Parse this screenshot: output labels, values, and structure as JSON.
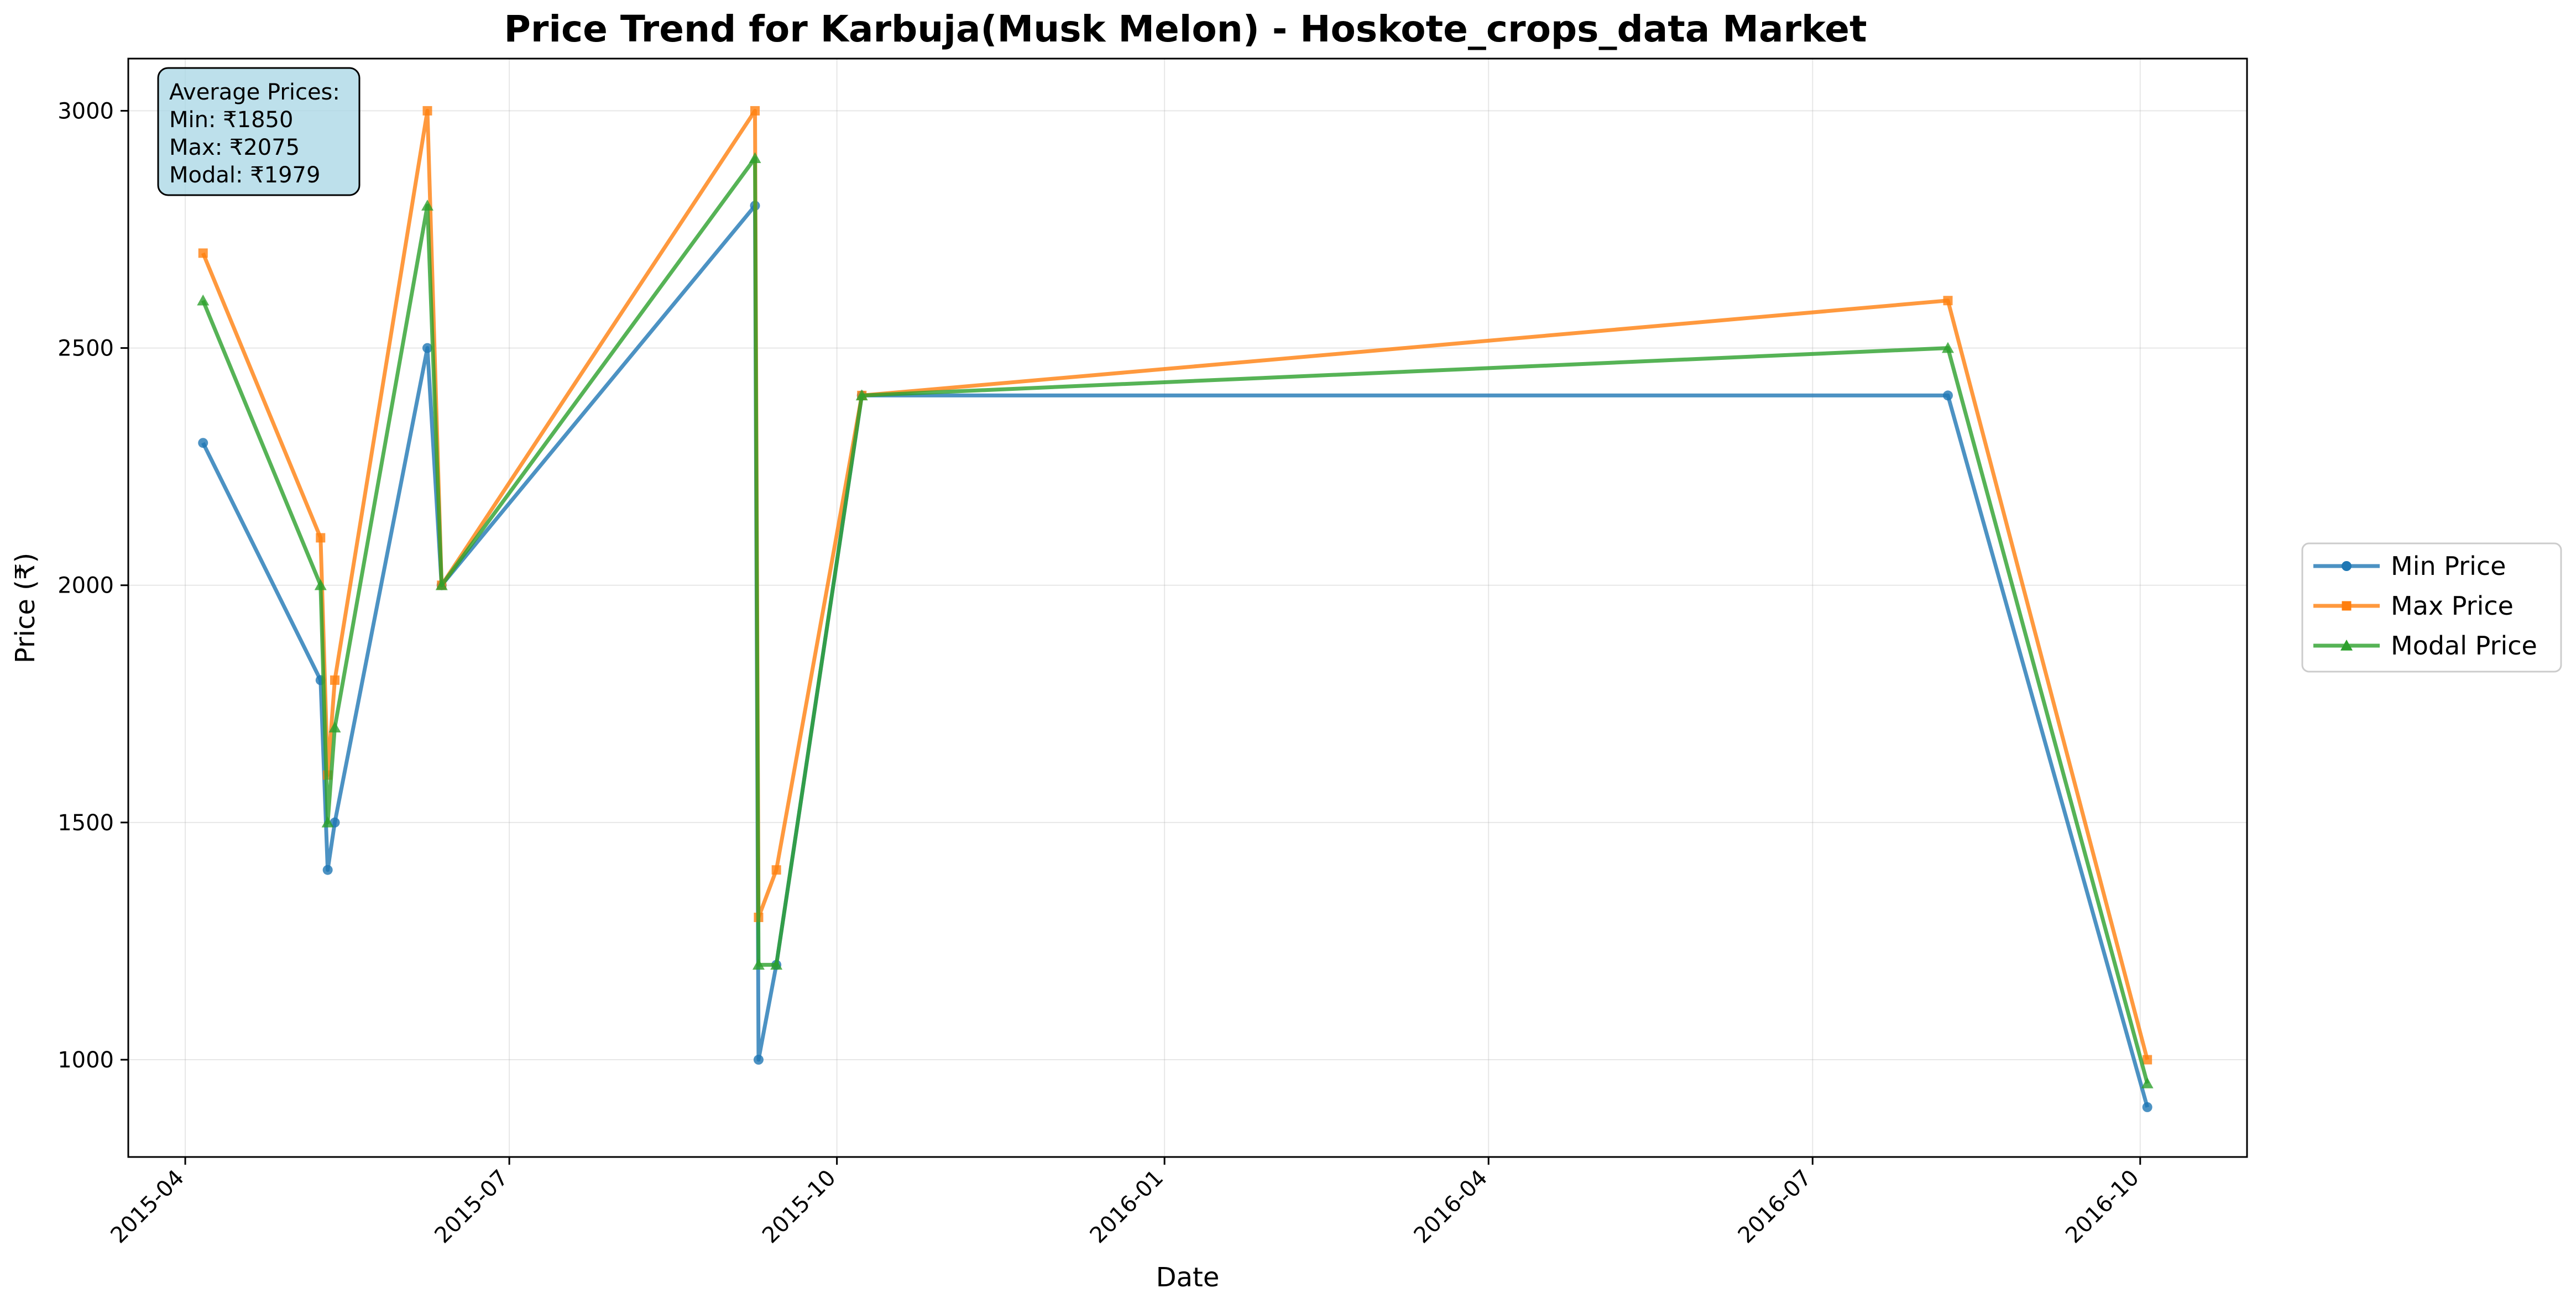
{
  "chart_data": {
    "type": "line",
    "title": "Price Trend for Karbuja(Musk Melon) - Hoskote_crops_data Market",
    "xlabel": "Date",
    "ylabel": "Price (₹)",
    "xlim": [
      "2015-03-16",
      "2016-10-31"
    ],
    "ylim": [
      795,
      3110
    ],
    "x_ticks": [
      "2015-04",
      "2015-07",
      "2015-10",
      "2016-01",
      "2016-04",
      "2016-07",
      "2016-10"
    ],
    "y_ticks": [
      1000,
      1500,
      2000,
      2500,
      3000
    ],
    "grid": true,
    "legend_position": "center-right-outside",
    "x": [
      "2015-04-06",
      "2015-05-09",
      "2015-05-11",
      "2015-05-13",
      "2015-06-08",
      "2015-06-12",
      "2015-09-08",
      "2015-09-09",
      "2015-09-14",
      "2015-10-08",
      "2016-08-08",
      "2016-10-03"
    ],
    "series": [
      {
        "name": "Min Price",
        "color": "#1f77b4",
        "marker": "circle",
        "values": [
          2300,
          1800,
          1400,
          1500,
          2500,
          2000,
          2800,
          1000,
          1200,
          2400,
          2400,
          900
        ]
      },
      {
        "name": "Max Price",
        "color": "#ff7f0e",
        "marker": "square",
        "values": [
          2700,
          2100,
          1600,
          1800,
          3000,
          2000,
          3000,
          1300,
          1400,
          2400,
          2600,
          1000
        ]
      },
      {
        "name": "Modal Price",
        "color": "#2ca02c",
        "marker": "triangle",
        "values": [
          2600,
          2000,
          1500,
          1700,
          2800,
          2000,
          2900,
          1200,
          1200,
          2400,
          2500,
          950
        ]
      }
    ],
    "annotation": {
      "lines": [
        "Average Prices:",
        "Min: ₹1850",
        "Max: ₹2075",
        "Modal: ₹1979"
      ],
      "box_color": "#add8e6"
    }
  }
}
